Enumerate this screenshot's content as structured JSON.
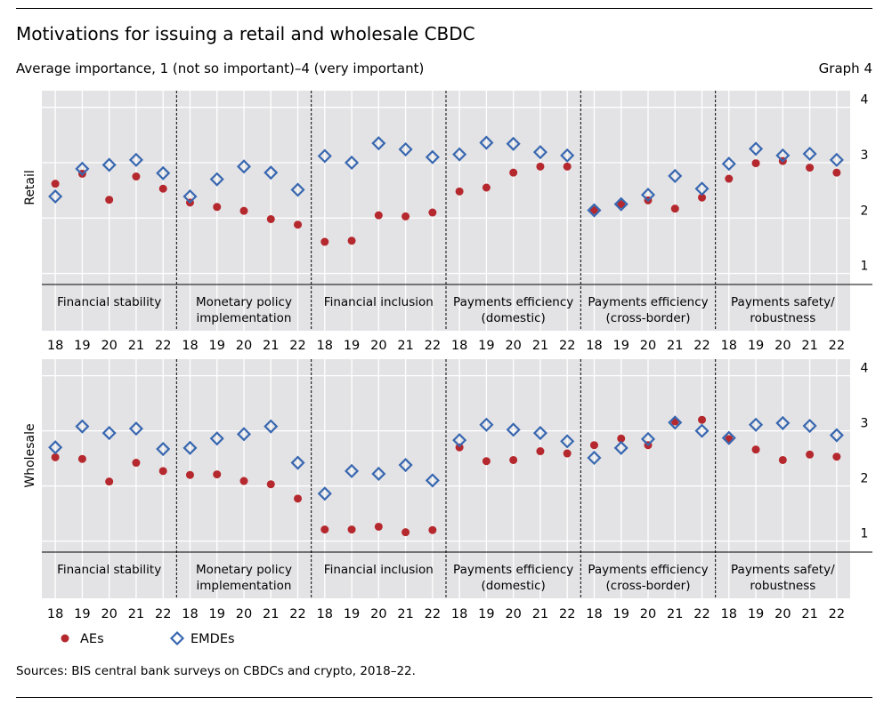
{
  "header": {
    "title": "Motivations for issuing a retail and wholesale CBDC",
    "subtitle": "Average importance, 1 (not so important)–4 (very important)",
    "graph_label": "Graph 4"
  },
  "footer": {
    "source": "Sources: BIS central bank surveys on CBDCs and crypto, 2018–22."
  },
  "colors": {
    "aes": "#b5282e",
    "emdes": "#3867b0",
    "panel_bg": "#e3e3e5",
    "grid": "#ffffff"
  },
  "chart_data": [
    {
      "type": "scatter",
      "panel": "Retail",
      "ylabel": "Retail",
      "ylim": [
        0.8,
        4.3
      ],
      "yticks": [
        1,
        2,
        3,
        4
      ],
      "groups": [
        "Financial stability",
        "Monetary policy implementation",
        "Financial inclusion",
        "Payments efficiency (domestic)",
        "Payments efficiency (cross-border)",
        "Payments safety/ robustness"
      ],
      "x": [
        "18",
        "19",
        "20",
        "21",
        "22"
      ],
      "series": [
        {
          "name": "AEs",
          "marker": "circle",
          "values": [
            [
              2.62,
              2.8,
              2.33,
              2.75,
              2.53
            ],
            [
              2.28,
              2.2,
              2.13,
              1.98,
              1.88
            ],
            [
              1.57,
              1.59,
              2.05,
              2.03,
              2.1
            ],
            [
              2.48,
              2.55,
              2.82,
              2.93,
              2.93
            ],
            [
              2.14,
              2.25,
              2.32,
              2.17,
              2.37
            ],
            [
              2.71,
              2.99,
              3.03,
              2.91,
              2.82
            ]
          ]
        },
        {
          "name": "EMDEs",
          "marker": "diamond",
          "values": [
            [
              2.39,
              2.89,
              2.96,
              3.05,
              2.81
            ],
            [
              2.39,
              2.7,
              2.93,
              2.82,
              2.51
            ],
            [
              3.12,
              3.0,
              3.35,
              3.24,
              3.1
            ],
            [
              3.15,
              3.36,
              3.34,
              3.19,
              3.13
            ],
            [
              2.14,
              2.25,
              2.42,
              2.76,
              2.53
            ],
            [
              2.98,
              3.25,
              3.13,
              3.16,
              3.05
            ]
          ]
        }
      ]
    },
    {
      "type": "scatter",
      "panel": "Wholesale",
      "ylabel": "Wholesale",
      "ylim": [
        0.8,
        4.3
      ],
      "yticks": [
        1,
        2,
        3,
        4
      ],
      "groups": [
        "Financial stability",
        "Monetary policy implementation",
        "Financial inclusion",
        "Payments efficiency (domestic)",
        "Payments efficiency (cross-border)",
        "Payments safety/ robustness"
      ],
      "x": [
        "18",
        "19",
        "20",
        "21",
        "22"
      ],
      "series": [
        {
          "name": "AEs",
          "marker": "circle",
          "values": [
            [
              2.52,
              2.49,
              2.08,
              2.42,
              2.27
            ],
            [
              2.2,
              2.21,
              2.09,
              2.03,
              1.77
            ],
            [
              1.21,
              1.21,
              1.26,
              1.16,
              1.2
            ],
            [
              2.7,
              2.45,
              2.47,
              2.63,
              2.59
            ],
            [
              2.74,
              2.86,
              2.74,
              3.17,
              3.2
            ],
            [
              2.85,
              2.66,
              2.47,
              2.57,
              2.53
            ]
          ]
        },
        {
          "name": "EMDEs",
          "marker": "diamond",
          "values": [
            [
              2.7,
              3.08,
              2.96,
              3.04,
              2.67
            ],
            [
              2.69,
              2.86,
              2.94,
              3.08,
              2.42
            ],
            [
              1.86,
              2.27,
              2.22,
              2.38,
              2.1
            ],
            [
              2.83,
              3.11,
              3.02,
              2.96,
              2.81
            ],
            [
              2.51,
              2.69,
              2.85,
              3.15,
              3.0
            ],
            [
              2.87,
              3.11,
              3.14,
              3.09,
              2.92
            ]
          ]
        }
      ]
    }
  ],
  "legend": {
    "placement": "bottom-left",
    "items": [
      {
        "name": "AEs",
        "marker": "circle"
      },
      {
        "name": "EMDEs",
        "marker": "diamond"
      }
    ]
  }
}
